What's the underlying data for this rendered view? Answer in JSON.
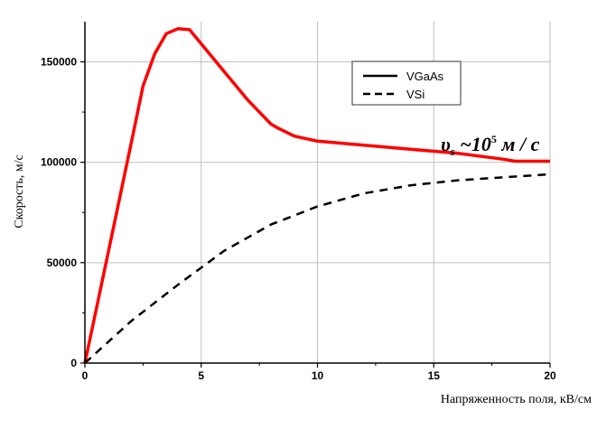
{
  "chart_data": {
    "type": "line",
    "xlabel": "Напряженность поля, кВ/см",
    "ylabel": "Скорость, м/с",
    "xlim": [
      0,
      20
    ],
    "ylim": [
      0,
      170000
    ],
    "x_ticks": [
      0,
      5,
      10,
      15,
      20
    ],
    "y_ticks": [
      0,
      50000,
      100000,
      150000
    ],
    "x_tick_labels": [
      "0",
      "5",
      "10",
      "15",
      "20"
    ],
    "y_tick_labels": [
      "0",
      "50000",
      "100000",
      "150000"
    ],
    "grid": true,
    "legend_position": "top-right",
    "series": [
      {
        "name": "VGaAs",
        "color": "#ff0000",
        "line_style": "solid",
        "x": [
          0,
          1,
          2,
          2.5,
          3,
          3.5,
          4,
          4.5,
          5,
          6,
          7,
          8,
          8.3,
          9,
          10,
          12,
          14,
          16,
          18,
          18.5,
          20
        ],
        "y": [
          0,
          55000,
          110000,
          138000,
          154000,
          164000,
          166500,
          166000,
          159000,
          145000,
          131000,
          119000,
          117000,
          113000,
          110500,
          108500,
          106500,
          104500,
          101500,
          100500,
          100500
        ]
      },
      {
        "name": "VSi",
        "color": "#000000",
        "line_style": "dashed",
        "x": [
          0,
          2,
          4,
          6,
          8,
          10,
          12,
          14,
          16,
          18,
          20
        ],
        "y": [
          0,
          21000,
          39000,
          56000,
          69000,
          78000,
          84500,
          88500,
          91000,
          92500,
          94000
        ]
      }
    ],
    "annotation": {
      "base": "υ",
      "subscript": "s",
      "tilde": " ~10",
      "superscript": "5",
      "unit": " м / с"
    }
  }
}
